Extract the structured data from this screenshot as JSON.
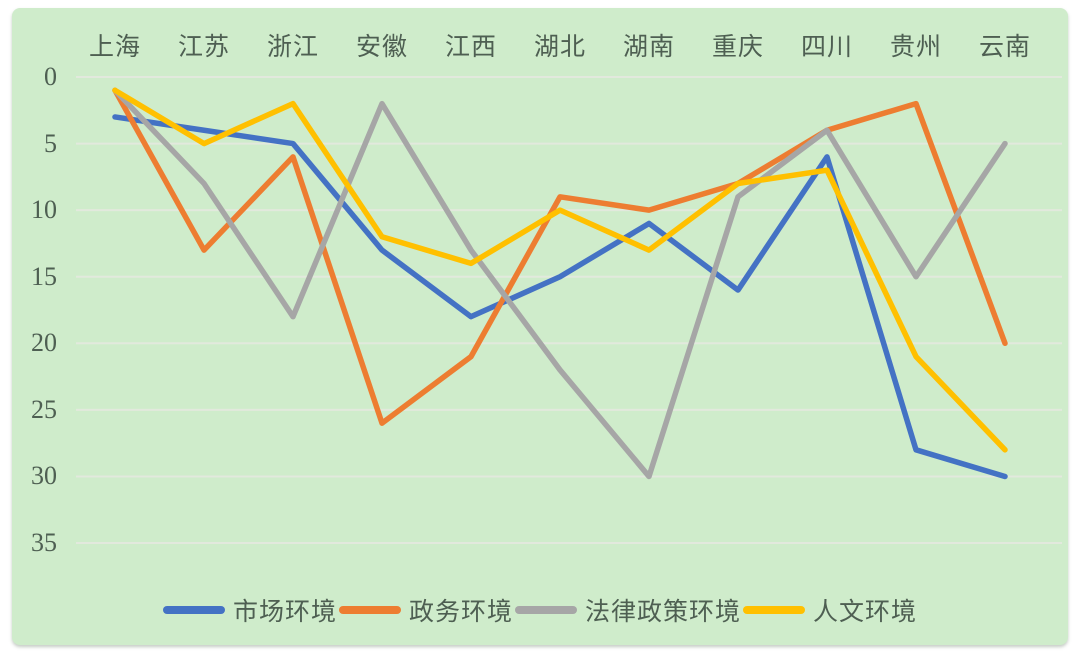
{
  "chart_data": {
    "type": "line",
    "title": "",
    "xlabel": "",
    "ylabel": "",
    "categories": [
      "上海",
      "江苏",
      "浙江",
      "安徽",
      "江西",
      "湖北",
      "湖南",
      "重庆",
      "四川",
      "贵州",
      "云南"
    ],
    "series": [
      {
        "id": "market-environment",
        "name": "市场环境",
        "color": "#4472C4",
        "values": [
          3,
          4,
          5,
          13,
          18,
          15,
          11,
          16,
          6,
          28,
          30
        ]
      },
      {
        "id": "government-affairs-environment",
        "name": "政务环境",
        "color": "#ED7D31",
        "values": [
          1,
          13,
          6,
          26,
          21,
          9,
          10,
          8,
          4,
          2,
          20
        ]
      },
      {
        "id": "legal-policy-environment",
        "name": "法律政策环境",
        "color": "#A6A6A6",
        "values": [
          1,
          8,
          18,
          2,
          13,
          22,
          30,
          9,
          4,
          15,
          5
        ]
      },
      {
        "id": "cultural-environment",
        "name": "人文环境",
        "color": "#FFC000",
        "values": [
          1,
          5,
          2,
          12,
          14,
          10,
          13,
          8,
          7,
          21,
          28
        ]
      }
    ],
    "y_ticks": [
      "0",
      "5",
      "10",
      "15",
      "20",
      "25",
      "30",
      "35"
    ],
    "ylim": [
      0,
      35
    ],
    "y_axis_inverted": true,
    "grid": true,
    "legend_position": "bottom"
  },
  "colors": {
    "panel_background": "#cfeccb",
    "gridline": "#e2e9dd",
    "axis_text": "#4e5f52"
  }
}
